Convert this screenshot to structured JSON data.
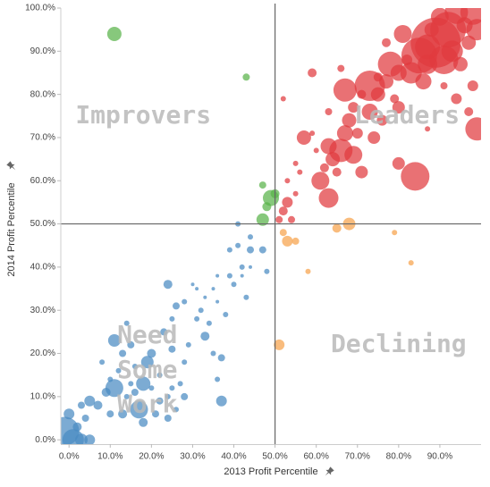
{
  "chart_data": {
    "type": "scatter",
    "title": "",
    "xlabel": "2013 Profit Percentile",
    "ylabel": "2014 Profit Percentile",
    "xlim": [
      -0.02,
      1.0
    ],
    "ylim": [
      -0.01,
      1.0
    ],
    "x_ticks": [
      0,
      0.1,
      0.2,
      0.3,
      0.4,
      0.5,
      0.6,
      0.7,
      0.8,
      0.9
    ],
    "x_tick_labels": [
      "0.0%",
      "10.0%",
      "20.0%",
      "30.0%",
      "40.0%",
      "50.0%",
      "60.0%",
      "70.0%",
      "80.0%",
      "90.0%"
    ],
    "y_ticks": [
      0,
      0.1,
      0.2,
      0.3,
      0.4,
      0.5,
      0.6,
      0.7,
      0.8,
      0.9,
      1.0
    ],
    "y_tick_labels": [
      "0.0%",
      "10.0%",
      "20.0%",
      "30.0%",
      "40.0%",
      "50.0%",
      "60.0%",
      "70.0%",
      "80.0%",
      "90.0%",
      "100.0%"
    ],
    "reference_lines": {
      "x": 0.5,
      "y": 0.5
    },
    "grid": false,
    "quadrant_labels": [
      {
        "text": "Improvers",
        "x": 0.18,
        "y": 0.75,
        "color": "#b9b9b9"
      },
      {
        "text": "Leaders",
        "x": 0.82,
        "y": 0.75,
        "color": "#b9b9b9"
      },
      {
        "text": "Need",
        "x": 0.19,
        "y": 0.24,
        "color": "#b9b9b9"
      },
      {
        "text": "Some",
        "x": 0.19,
        "y": 0.16,
        "color": "#b9b9b9"
      },
      {
        "text": "Work",
        "x": 0.19,
        "y": 0.08,
        "color": "#b9b9b9"
      },
      {
        "text": "Declining",
        "x": 0.8,
        "y": 0.22,
        "color": "#b9b9b9"
      }
    ],
    "colors": {
      "leaders": "#e03a3e",
      "improvers": "#59b34a",
      "declining": "#f7a24b",
      "need_some_work": "#4a8bc2"
    },
    "series": [
      {
        "key": "need_some_work",
        "color": "#4a8bc2",
        "points": [
          {
            "x": -0.01,
            "y": 0.02,
            "s": 16
          },
          {
            "x": 0.0,
            "y": 0.06,
            "s": 6
          },
          {
            "x": 0.01,
            "y": 0.0,
            "s": 12
          },
          {
            "x": 0.03,
            "y": 0.0,
            "s": 7
          },
          {
            "x": 0.05,
            "y": 0.0,
            "s": 6
          },
          {
            "x": 0.02,
            "y": 0.03,
            "s": 5
          },
          {
            "x": 0.04,
            "y": 0.05,
            "s": 4
          },
          {
            "x": 0.05,
            "y": 0.09,
            "s": 6
          },
          {
            "x": 0.03,
            "y": 0.08,
            "s": 4
          },
          {
            "x": 0.07,
            "y": 0.08,
            "s": 5
          },
          {
            "x": 0.09,
            "y": 0.11,
            "s": 5
          },
          {
            "x": 0.1,
            "y": 0.14,
            "s": 3
          },
          {
            "x": 0.11,
            "y": 0.12,
            "s": 10
          },
          {
            "x": 0.1,
            "y": 0.06,
            "s": 4
          },
          {
            "x": 0.12,
            "y": 0.16,
            "s": 3
          },
          {
            "x": 0.13,
            "y": 0.06,
            "s": 5
          },
          {
            "x": 0.08,
            "y": 0.18,
            "s": 3
          },
          {
            "x": 0.11,
            "y": 0.23,
            "s": 7
          },
          {
            "x": 0.14,
            "y": 0.1,
            "s": 3
          },
          {
            "x": 0.13,
            "y": 0.2,
            "s": 4
          },
          {
            "x": 0.14,
            "y": 0.27,
            "s": 3
          },
          {
            "x": 0.15,
            "y": 0.22,
            "s": 4
          },
          {
            "x": 0.16,
            "y": 0.17,
            "s": 3
          },
          {
            "x": 0.17,
            "y": 0.07,
            "s": 10
          },
          {
            "x": 0.16,
            "y": 0.11,
            "s": 4
          },
          {
            "x": 0.18,
            "y": 0.13,
            "s": 8
          },
          {
            "x": 0.18,
            "y": 0.04,
            "s": 5
          },
          {
            "x": 0.19,
            "y": 0.18,
            "s": 7
          },
          {
            "x": 0.2,
            "y": 0.12,
            "s": 3
          },
          {
            "x": 0.2,
            "y": 0.2,
            "s": 5
          },
          {
            "x": 0.21,
            "y": 0.06,
            "s": 4
          },
          {
            "x": 0.22,
            "y": 0.15,
            "s": 3
          },
          {
            "x": 0.22,
            "y": 0.09,
            "s": 4
          },
          {
            "x": 0.24,
            "y": 0.1,
            "s": 3
          },
          {
            "x": 0.24,
            "y": 0.05,
            "s": 4
          },
          {
            "x": 0.25,
            "y": 0.12,
            "s": 3
          },
          {
            "x": 0.26,
            "y": 0.07,
            "s": 3
          },
          {
            "x": 0.27,
            "y": 0.13,
            "s": 3
          },
          {
            "x": 0.28,
            "y": 0.1,
            "s": 4
          },
          {
            "x": 0.28,
            "y": 0.18,
            "s": 3
          },
          {
            "x": 0.29,
            "y": 0.22,
            "s": 3
          },
          {
            "x": 0.25,
            "y": 0.21,
            "s": 4
          },
          {
            "x": 0.23,
            "y": 0.25,
            "s": 4
          },
          {
            "x": 0.25,
            "y": 0.28,
            "s": 3
          },
          {
            "x": 0.24,
            "y": 0.36,
            "s": 5
          },
          {
            "x": 0.26,
            "y": 0.31,
            "s": 4
          },
          {
            "x": 0.28,
            "y": 0.32,
            "s": 3
          },
          {
            "x": 0.3,
            "y": 0.36,
            "s": 2
          },
          {
            "x": 0.31,
            "y": 0.35,
            "s": 2
          },
          {
            "x": 0.31,
            "y": 0.28,
            "s": 3
          },
          {
            "x": 0.32,
            "y": 0.3,
            "s": 3
          },
          {
            "x": 0.33,
            "y": 0.24,
            "s": 5
          },
          {
            "x": 0.33,
            "y": 0.33,
            "s": 2
          },
          {
            "x": 0.34,
            "y": 0.27,
            "s": 3
          },
          {
            "x": 0.35,
            "y": 0.35,
            "s": 2
          },
          {
            "x": 0.36,
            "y": 0.32,
            "s": 2
          },
          {
            "x": 0.35,
            "y": 0.2,
            "s": 3
          },
          {
            "x": 0.36,
            "y": 0.14,
            "s": 3
          },
          {
            "x": 0.37,
            "y": 0.19,
            "s": 4
          },
          {
            "x": 0.37,
            "y": 0.09,
            "s": 6
          },
          {
            "x": 0.38,
            "y": 0.29,
            "s": 3
          },
          {
            "x": 0.39,
            "y": 0.38,
            "s": 3
          },
          {
            "x": 0.39,
            "y": 0.44,
            "s": 3
          },
          {
            "x": 0.41,
            "y": 0.45,
            "s": 3
          },
          {
            "x": 0.42,
            "y": 0.4,
            "s": 3
          },
          {
            "x": 0.44,
            "y": 0.44,
            "s": 4
          },
          {
            "x": 0.44,
            "y": 0.47,
            "s": 3
          },
          {
            "x": 0.41,
            "y": 0.5,
            "s": 3
          },
          {
            "x": 0.4,
            "y": 0.36,
            "s": 3
          },
          {
            "x": 0.43,
            "y": 0.33,
            "s": 3
          },
          {
            "x": 0.47,
            "y": 0.44,
            "s": 4
          },
          {
            "x": 0.48,
            "y": 0.39,
            "s": 3
          },
          {
            "x": 0.42,
            "y": 0.38,
            "s": 2
          },
          {
            "x": 0.44,
            "y": 0.4,
            "s": 2
          },
          {
            "x": 0.36,
            "y": 0.38,
            "s": 2
          },
          {
            "x": 0.15,
            "y": 0.13,
            "s": 3
          }
        ]
      },
      {
        "key": "improvers",
        "color": "#59b34a",
        "points": [
          {
            "x": 0.11,
            "y": 0.94,
            "s": 8
          },
          {
            "x": 0.43,
            "y": 0.84,
            "s": 4
          },
          {
            "x": 0.47,
            "y": 0.59,
            "s": 4
          },
          {
            "x": 0.49,
            "y": 0.56,
            "s": 9
          },
          {
            "x": 0.48,
            "y": 0.54,
            "s": 5
          },
          {
            "x": 0.5,
            "y": 0.57,
            "s": 5
          },
          {
            "x": 0.47,
            "y": 0.51,
            "s": 7
          }
        ]
      },
      {
        "key": "declining",
        "color": "#f7a24b",
        "points": [
          {
            "x": 0.51,
            "y": 0.22,
            "s": 6
          },
          {
            "x": 0.52,
            "y": 0.48,
            "s": 4
          },
          {
            "x": 0.53,
            "y": 0.46,
            "s": 6
          },
          {
            "x": 0.55,
            "y": 0.46,
            "s": 4
          },
          {
            "x": 0.58,
            "y": 0.39,
            "s": 3
          },
          {
            "x": 0.65,
            "y": 0.49,
            "s": 5
          },
          {
            "x": 0.68,
            "y": 0.5,
            "s": 7
          },
          {
            "x": 0.79,
            "y": 0.48,
            "s": 3
          },
          {
            "x": 0.83,
            "y": 0.41,
            "s": 3
          }
        ]
      },
      {
        "key": "leaders",
        "color": "#e03a3e",
        "points": [
          {
            "x": 0.51,
            "y": 0.51,
            "s": 4
          },
          {
            "x": 0.52,
            "y": 0.53,
            "s": 5
          },
          {
            "x": 0.53,
            "y": 0.55,
            "s": 6
          },
          {
            "x": 0.54,
            "y": 0.51,
            "s": 4
          },
          {
            "x": 0.55,
            "y": 0.57,
            "s": 3
          },
          {
            "x": 0.53,
            "y": 0.6,
            "s": 3
          },
          {
            "x": 0.52,
            "y": 0.79,
            "s": 3
          },
          {
            "x": 0.55,
            "y": 0.64,
            "s": 3
          },
          {
            "x": 0.57,
            "y": 0.7,
            "s": 8
          },
          {
            "x": 0.59,
            "y": 0.71,
            "s": 3
          },
          {
            "x": 0.6,
            "y": 0.67,
            "s": 3
          },
          {
            "x": 0.59,
            "y": 0.85,
            "s": 5
          },
          {
            "x": 0.61,
            "y": 0.6,
            "s": 10
          },
          {
            "x": 0.62,
            "y": 0.63,
            "s": 5
          },
          {
            "x": 0.63,
            "y": 0.56,
            "s": 11
          },
          {
            "x": 0.63,
            "y": 0.68,
            "s": 9
          },
          {
            "x": 0.64,
            "y": 0.65,
            "s": 8
          },
          {
            "x": 0.65,
            "y": 0.62,
            "s": 5
          },
          {
            "x": 0.66,
            "y": 0.67,
            "s": 13
          },
          {
            "x": 0.67,
            "y": 0.71,
            "s": 9
          },
          {
            "x": 0.68,
            "y": 0.74,
            "s": 8
          },
          {
            "x": 0.69,
            "y": 0.66,
            "s": 10
          },
          {
            "x": 0.7,
            "y": 0.71,
            "s": 6
          },
          {
            "x": 0.71,
            "y": 0.62,
            "s": 7
          },
          {
            "x": 0.67,
            "y": 0.81,
            "s": 13
          },
          {
            "x": 0.69,
            "y": 0.77,
            "s": 6
          },
          {
            "x": 0.71,
            "y": 0.8,
            "s": 5
          },
          {
            "x": 0.73,
            "y": 0.82,
            "s": 17
          },
          {
            "x": 0.73,
            "y": 0.76,
            "s": 9
          },
          {
            "x": 0.74,
            "y": 0.7,
            "s": 7
          },
          {
            "x": 0.75,
            "y": 0.8,
            "s": 8
          },
          {
            "x": 0.75,
            "y": 0.84,
            "s": 5
          },
          {
            "x": 0.76,
            "y": 0.74,
            "s": 6
          },
          {
            "x": 0.77,
            "y": 0.83,
            "s": 8
          },
          {
            "x": 0.77,
            "y": 0.92,
            "s": 5
          },
          {
            "x": 0.78,
            "y": 0.87,
            "s": 14
          },
          {
            "x": 0.79,
            "y": 0.79,
            "s": 5
          },
          {
            "x": 0.8,
            "y": 0.77,
            "s": 7
          },
          {
            "x": 0.8,
            "y": 0.85,
            "s": 9
          },
          {
            "x": 0.81,
            "y": 0.94,
            "s": 10
          },
          {
            "x": 0.82,
            "y": 0.88,
            "s": 6
          },
          {
            "x": 0.83,
            "y": 0.85,
            "s": 12
          },
          {
            "x": 0.84,
            "y": 0.61,
            "s": 16
          },
          {
            "x": 0.85,
            "y": 0.89,
            "s": 20
          },
          {
            "x": 0.86,
            "y": 0.83,
            "s": 9
          },
          {
            "x": 0.87,
            "y": 0.91,
            "s": 14
          },
          {
            "x": 0.87,
            "y": 0.87,
            "s": 11
          },
          {
            "x": 0.88,
            "y": 0.95,
            "s": 8
          },
          {
            "x": 0.89,
            "y": 0.92,
            "s": 28
          },
          {
            "x": 0.9,
            "y": 0.98,
            "s": 10
          },
          {
            "x": 0.91,
            "y": 0.88,
            "s": 16
          },
          {
            "x": 0.92,
            "y": 0.95,
            "s": 20
          },
          {
            "x": 0.93,
            "y": 0.9,
            "s": 12
          },
          {
            "x": 0.94,
            "y": 0.99,
            "s": 13
          },
          {
            "x": 0.94,
            "y": 0.79,
            "s": 6
          },
          {
            "x": 0.95,
            "y": 0.87,
            "s": 8
          },
          {
            "x": 0.96,
            "y": 0.96,
            "s": 9
          },
          {
            "x": 0.97,
            "y": 0.92,
            "s": 8
          },
          {
            "x": 0.98,
            "y": 0.99,
            "s": 14
          },
          {
            "x": 0.99,
            "y": 0.95,
            "s": 12
          },
          {
            "x": 0.99,
            "y": 0.72,
            "s": 13
          },
          {
            "x": 0.97,
            "y": 0.76,
            "s": 5
          },
          {
            "x": 0.98,
            "y": 0.82,
            "s": 6
          },
          {
            "x": 0.66,
            "y": 0.86,
            "s": 4
          },
          {
            "x": 0.8,
            "y": 0.64,
            "s": 7
          },
          {
            "x": 0.91,
            "y": 0.82,
            "s": 4
          },
          {
            "x": 0.87,
            "y": 0.72,
            "s": 3
          },
          {
            "x": 0.56,
            "y": 0.62,
            "s": 3
          },
          {
            "x": 0.63,
            "y": 0.76,
            "s": 4
          }
        ]
      }
    ]
  }
}
